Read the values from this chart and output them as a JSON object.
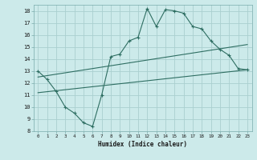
{
  "xlabel": "Humidex (Indice chaleur)",
  "bg_color": "#cceaea",
  "grid_color": "#aacfcf",
  "line_color": "#2e6e62",
  "xlim": [
    -0.5,
    23.5
  ],
  "ylim": [
    8,
    18.5
  ],
  "xticks": [
    0,
    1,
    2,
    3,
    4,
    5,
    6,
    7,
    8,
    9,
    10,
    11,
    12,
    13,
    14,
    15,
    16,
    17,
    18,
    19,
    20,
    21,
    22,
    23
  ],
  "yticks": [
    8,
    9,
    10,
    11,
    12,
    13,
    14,
    15,
    16,
    17,
    18
  ],
  "main_x": [
    0,
    1,
    2,
    3,
    4,
    5,
    6,
    7,
    8,
    9,
    10,
    11,
    12,
    13,
    14,
    15,
    16,
    17,
    18,
    19,
    20,
    21,
    22,
    23
  ],
  "main_y": [
    13,
    12.3,
    11.3,
    10.0,
    9.5,
    8.7,
    8.4,
    11.0,
    14.2,
    14.4,
    15.5,
    15.8,
    18.2,
    16.7,
    18.1,
    18.0,
    17.8,
    16.7,
    16.5,
    15.5,
    14.8,
    14.3,
    13.2,
    13.1
  ],
  "line1_x": [
    0,
    23
  ],
  "line1_y": [
    12.5,
    15.2
  ],
  "line2_x": [
    0,
    23
  ],
  "line2_y": [
    11.2,
    13.1
  ]
}
